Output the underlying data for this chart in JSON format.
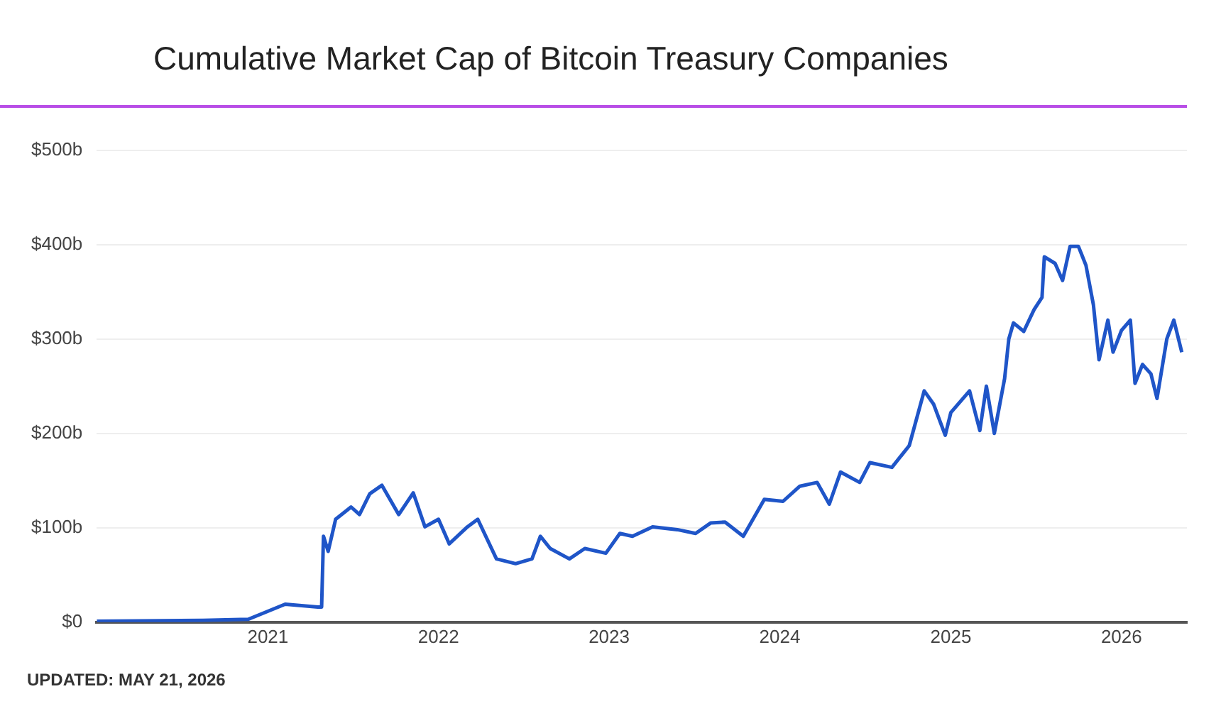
{
  "chart_data": {
    "type": "line",
    "title": "Cumulative Market Cap of Bitcoin Treasury Companies",
    "annotations": [
      "UPDATED: MAY 21, 2026"
    ],
    "x": [
      "2020-01-01",
      "2020-08-15",
      "2020-11-20",
      "2021-02-07",
      "2021-04-18",
      "2021-04-26",
      "2021-04-30",
      "2021-05-10",
      "2021-05-26",
      "2021-06-28",
      "2021-07-16",
      "2021-08-07",
      "2021-09-02",
      "2021-10-08",
      "2021-11-08",
      "2021-12-03",
      "2022-01-01",
      "2022-01-24",
      "2022-03-04",
      "2022-03-26",
      "2022-05-05",
      "2022-06-15",
      "2022-07-20",
      "2022-08-07",
      "2022-08-28",
      "2022-10-08",
      "2022-11-10",
      "2022-12-25",
      "2023-01-24",
      "2023-02-20",
      "2023-04-04",
      "2023-05-27",
      "2023-07-05",
      "2023-08-06",
      "2023-09-06",
      "2023-10-15",
      "2023-11-29",
      "2024-01-08",
      "2024-02-13",
      "2024-03-21",
      "2024-04-16",
      "2024-05-10",
      "2024-06-20",
      "2024-07-12",
      "2024-08-28",
      "2024-10-04",
      "2024-11-05",
      "2024-11-25",
      "2024-12-20",
      "2025-01-01",
      "2025-02-10",
      "2025-03-04",
      "2025-03-18",
      "2025-04-04",
      "2025-04-26",
      "2025-05-05",
      "2025-05-15",
      "2025-06-06",
      "2025-06-28",
      "2025-07-15",
      "2025-07-20",
      "2025-08-12",
      "2025-08-28",
      "2025-09-13",
      "2025-10-01",
      "2025-10-17",
      "2025-11-02",
      "2025-11-14",
      "2025-12-03",
      "2025-12-14",
      "2026-01-01",
      "2026-01-20",
      "2026-01-30",
      "2026-02-15",
      "2026-03-05",
      "2026-03-18",
      "2026-04-08",
      "2026-04-23",
      "2026-05-10"
    ],
    "series": [
      {
        "color": "#1f55c8",
        "values": [
          1,
          2,
          3,
          19,
          16,
          16,
          91,
          75,
          109,
          122,
          114,
          136,
          145,
          114,
          137,
          101,
          109,
          83,
          101,
          109,
          67,
          62,
          67,
          91,
          78,
          67,
          78,
          73,
          94,
          91,
          101,
          98,
          94,
          105,
          106,
          91,
          130,
          128,
          144,
          148,
          125,
          159,
          148,
          169,
          164,
          187,
          245,
          231,
          198,
          222,
          245,
          203,
          250,
          200,
          258,
          300,
          317,
          308,
          331,
          344,
          387,
          380,
          362,
          398,
          398,
          378,
          336,
          278,
          320,
          286,
          309,
          320,
          253,
          273,
          263,
          237,
          300,
          320,
          286
        ]
      }
    ],
    "xlim": [
      "2020-01-01",
      "2026-05-21"
    ],
    "xticks": [
      "2021",
      "2022",
      "2023",
      "2024",
      "2025",
      "2026"
    ],
    "ylim": [
      0,
      500
    ],
    "yticks": [
      {
        "value": 0,
        "label": "$0"
      },
      {
        "value": 100,
        "label": "$100b"
      },
      {
        "value": 200,
        "label": "$200b"
      },
      {
        "value": 300,
        "label": "$300b"
      },
      {
        "value": 400,
        "label": "$400b"
      },
      {
        "value": 500,
        "label": "$500b"
      }
    ],
    "grid": "y",
    "legend": false,
    "marker": "none",
    "line_style": "solid"
  }
}
